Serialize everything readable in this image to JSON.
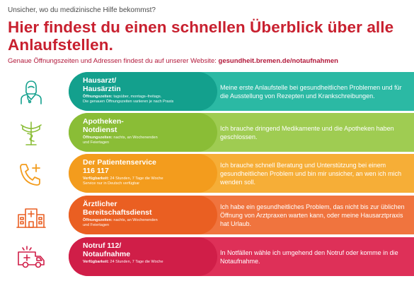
{
  "header": {
    "subtitle": "Unsicher, wo du medizinische Hilfe bekommst?",
    "headline": "Hier findest du einen schnellen Überblick über alle Anlaufstellen.",
    "website_text": "Genaue Öffnungszeiten und Adressen findest du auf unserer Website:",
    "website_url": "gesundheit.bremen.de/notaufnahmen"
  },
  "rows": [
    {
      "name_line1": "Hausarzt/",
      "name_line2": "Hausärztin",
      "info_label": "Öffnungszeiten:",
      "info_text": "tagsüber, montags–freitags.",
      "info_extra": "Die genauen Öffnungszeiten variieren je nach Praxis",
      "description": "Meine erste Anlaufstelle bei gesundheitlichen Problemen und für die Ausstellung von Rezepten und Krankschreibungen.",
      "icon": "doctor-icon",
      "color_band": "#2bb9a4",
      "color_pill": "#13a08d"
    },
    {
      "name_line1": "Apotheken-",
      "name_line2": "Notdienst",
      "info_label": "Öffnungszeiten:",
      "info_text": "nachts, an Wochenenden",
      "info_extra": "und Feiertagen",
      "description": "Ich brauche dringend Medikamente und die Apotheken haben geschlossen.",
      "icon": "pharmacy-icon",
      "color_band": "#9fcc52",
      "color_pill": "#8abd36"
    },
    {
      "name_line1": "Der Patientenservice",
      "name_line2": "116 117",
      "info_label": "Verfügbarkeit:",
      "info_text": "24 Stunden, 7 Tage die Woche",
      "info_extra": "Service nur in Deutsch verfügbar",
      "description": "Ich brauche schnell Beratung und Unterstützung bei einem gesundheitlichen Problem und bin mir unsicher, an wen ich mich wenden soll.",
      "icon": "phone-plus-icon",
      "color_band": "#f6ae37",
      "color_pill": "#f39c1d"
    },
    {
      "name_line1": "Ärztlicher",
      "name_line2": "Bereitschaftsdienst",
      "info_label": "Öffnungszeiten:",
      "info_text": "nachts, an Wochenenden",
      "info_extra": "und Feiertagen",
      "description": "Ich habe ein gesundheitliches Problem, das nicht bis zur üblichen Öffnung von Arztpraxen warten kann, oder meine Hausarztpraxis hat Urlaub.",
      "icon": "hospital-icon",
      "color_band": "#f0743e",
      "color_pill": "#ea5f22"
    },
    {
      "name_line1": "Notruf 112/",
      "name_line2": "Notaufnahme",
      "info_label": "Verfügbarkeit:",
      "info_text": "24 Stunden, 7 Tage die Woche",
      "info_extra": "",
      "description": "In Notfällen wähle ich umgehend den Notruf oder komme in die Notaufnahme.",
      "icon": "ambulance-icon",
      "color_band": "#de3058",
      "color_pill": "#d01e48"
    }
  ]
}
